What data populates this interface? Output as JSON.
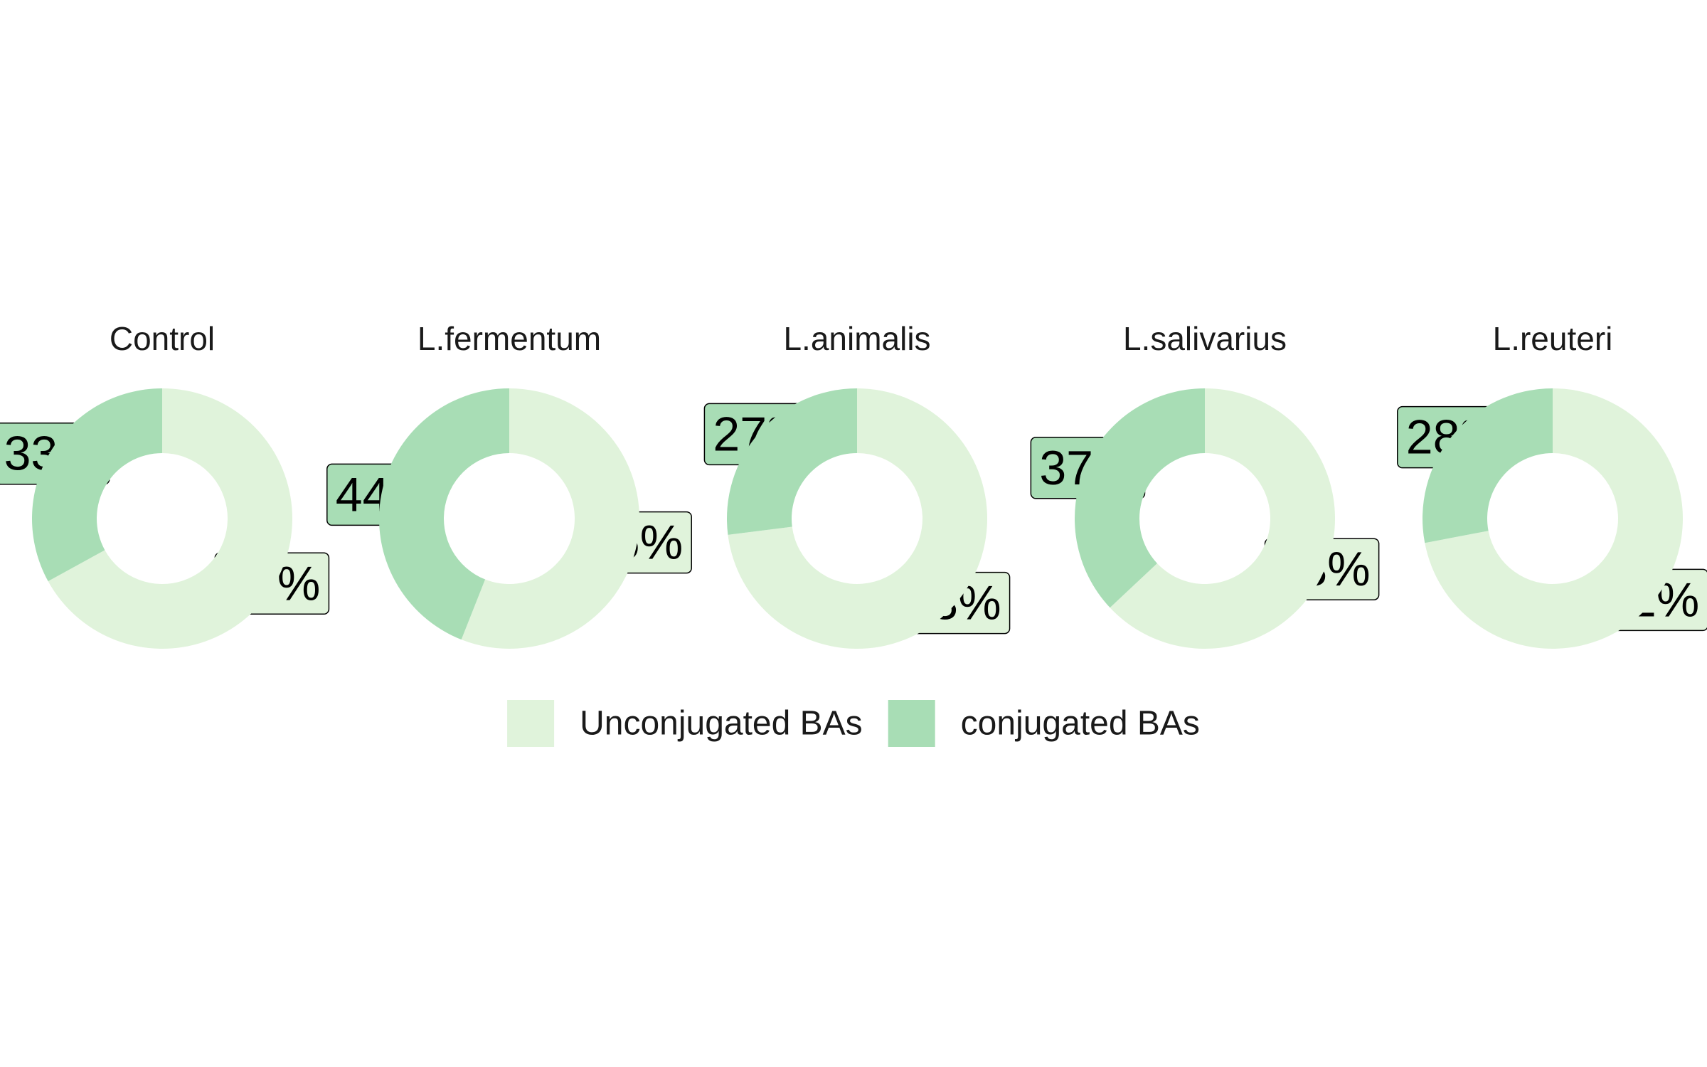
{
  "chart_data": {
    "type": "pie",
    "subtype": "donut",
    "colors": {
      "Unconjugated BAs": "#e0f3db",
      "conjugated BAs": "#a8ddb5"
    },
    "legend": {
      "position": "bottom",
      "entries": [
        "Unconjugated BAs",
        "conjugated BAs"
      ]
    },
    "panels": [
      {
        "title": "Control",
        "slices": [
          {
            "category": "Unconjugated BAs",
            "value": 67,
            "label": "67%"
          },
          {
            "category": "conjugated BAs",
            "value": 33,
            "label": "33%"
          }
        ]
      },
      {
        "title": "L.fermentum",
        "slices": [
          {
            "category": "Unconjugated BAs",
            "value": 56,
            "label": "56%"
          },
          {
            "category": "conjugated BAs",
            "value": 44,
            "label": "44%"
          }
        ]
      },
      {
        "title": "L.animalis",
        "slices": [
          {
            "category": "Unconjugated BAs",
            "value": 73,
            "label": "73%"
          },
          {
            "category": "conjugated BAs",
            "value": 27,
            "label": "27%"
          }
        ]
      },
      {
        "title": "L.salivarius",
        "slices": [
          {
            "category": "Unconjugated BAs",
            "value": 63,
            "label": "63%"
          },
          {
            "category": "conjugated BAs",
            "value": 37,
            "label": "37%"
          }
        ]
      },
      {
        "title": "L.reuteri",
        "slices": [
          {
            "category": "Unconjugated BAs",
            "value": 72,
            "label": "72%"
          },
          {
            "category": "conjugated BAs",
            "value": 28,
            "label": "28%"
          }
        ]
      }
    ]
  }
}
